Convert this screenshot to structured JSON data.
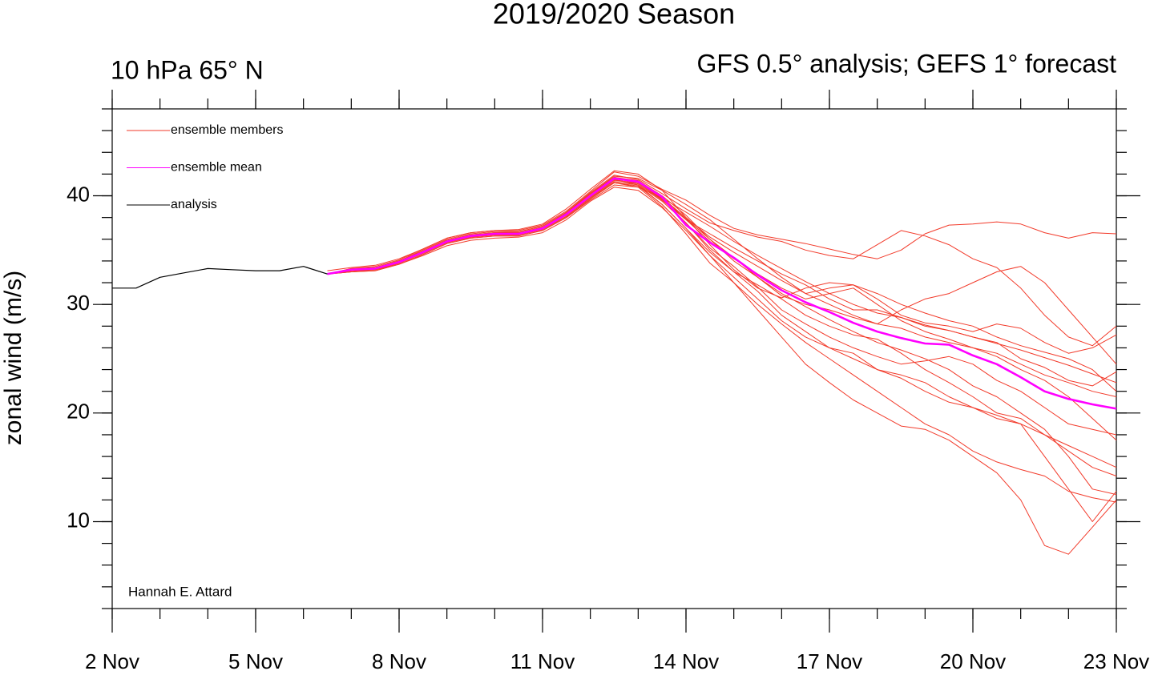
{
  "chart_data": {
    "type": "line",
    "title": "2019/2020 Season",
    "subtitle_left": "10 hPa 65° N",
    "subtitle_right": "GFS 0.5° analysis; GEFS 1° forecast",
    "ylabel": "zonal wind (m/s)",
    "annotation": "Hannah E. Attard",
    "xlim": [
      2,
      23
    ],
    "xticks": [
      {
        "value": 2,
        "label": "2 Nov"
      },
      {
        "value": 5,
        "label": "5 Nov"
      },
      {
        "value": 8,
        "label": "8 Nov"
      },
      {
        "value": 11,
        "label": "11 Nov"
      },
      {
        "value": 14,
        "label": "14 Nov"
      },
      {
        "value": 17,
        "label": "17 Nov"
      },
      {
        "value": 20,
        "label": "20 Nov"
      },
      {
        "value": 23,
        "label": "23 Nov"
      }
    ],
    "ylim": [
      2,
      48
    ],
    "yticks": [
      10,
      20,
      30,
      40
    ],
    "grid": false,
    "legend": "upper left",
    "series": [
      {
        "name": "ensemble members",
        "color": "#f23a2a",
        "x": [
          6.5,
          7,
          7.5,
          8,
          8.5,
          9,
          9.5,
          10,
          10.5,
          11,
          11.5,
          12,
          12.5,
          13,
          13.5,
          14,
          14.5,
          15,
          15.5,
          16,
          16.5,
          17,
          17.5,
          18,
          18.5,
          19,
          19.5,
          20,
          20.5,
          21,
          21.5,
          22,
          22.5,
          23
        ],
        "values": [
          [
            33.1,
            33.4,
            33.6,
            34.2,
            35.1,
            36.1,
            36.6,
            36.8,
            36.8,
            37.3,
            38.6,
            40.4,
            42.2,
            41.8,
            40.6,
            39.6,
            38.2,
            37.0,
            36.4,
            36.0,
            35.6,
            35.1,
            34.6,
            34.2,
            35.0,
            36.5,
            37.3,
            37.4,
            37.6,
            37.4,
            36.6,
            36.1,
            36.6,
            36.5
          ],
          [
            32.8,
            33.0,
            33.1,
            33.7,
            34.6,
            35.6,
            36.1,
            36.3,
            36.3,
            36.8,
            38.0,
            39.6,
            41.0,
            40.8,
            39.8,
            38.5,
            37.2,
            35.8,
            34.5,
            33.3,
            32.1,
            31.0,
            30.0,
            29.2,
            28.8,
            28.1,
            27.6,
            27.0,
            26.4,
            25.8,
            25.1,
            24.4,
            23.6,
            22.8
          ],
          [
            32.8,
            33.3,
            33.5,
            34.1,
            35.1,
            36.1,
            36.6,
            36.8,
            36.9,
            37.4,
            38.8,
            40.6,
            42.3,
            42.0,
            40.5,
            38.0,
            35.5,
            33.2,
            31.5,
            30.6,
            31.5,
            32.0,
            31.8,
            30.5,
            29.0,
            28.3,
            28.0,
            27.5,
            28.2,
            27.8,
            26.5,
            25.5,
            26.0,
            27.2
          ],
          [
            32.8,
            33.1,
            33.2,
            33.7,
            34.5,
            35.4,
            35.9,
            36.1,
            36.2,
            36.6,
            37.8,
            39.5,
            40.8,
            40.5,
            38.9,
            36.8,
            34.5,
            32.0,
            29.5,
            27.0,
            24.5,
            22.8,
            21.2,
            20.0,
            18.8,
            18.5,
            17.5,
            16.0,
            14.5,
            12.0,
            7.8,
            7.0,
            9.5,
            12.0
          ],
          [
            32.8,
            33.2,
            33.4,
            34.0,
            35.0,
            36.0,
            36.5,
            36.7,
            36.7,
            37.2,
            38.5,
            40.3,
            41.9,
            41.5,
            40.2,
            38.8,
            37.5,
            36.8,
            36.2,
            35.8,
            35.0,
            34.5,
            34.2,
            35.5,
            36.8,
            36.3,
            35.5,
            34.2,
            33.4,
            31.5,
            29.0,
            27.0,
            26.2,
            28.0
          ],
          [
            32.8,
            33.0,
            33.2,
            33.8,
            34.7,
            35.7,
            36.2,
            36.4,
            36.4,
            36.9,
            38.1,
            39.8,
            41.3,
            41.0,
            39.5,
            37.5,
            35.0,
            33.0,
            31.2,
            29.0,
            27.5,
            26.0,
            25.0,
            24.0,
            23.5,
            22.8,
            21.5,
            20.5,
            19.5,
            19.0,
            18.0,
            17.0,
            16.0,
            15.0
          ],
          [
            32.8,
            33.1,
            33.3,
            33.9,
            34.9,
            35.9,
            36.4,
            36.6,
            36.6,
            37.1,
            38.4,
            40.1,
            41.7,
            41.4,
            40.0,
            38.2,
            36.0,
            34.0,
            32.5,
            31.0,
            29.8,
            28.6,
            27.5,
            26.5,
            25.8,
            25.0,
            24.0,
            22.5,
            21.5,
            20.0,
            18.5,
            16.0,
            13.0,
            12.5
          ],
          [
            32.8,
            33.2,
            33.3,
            33.9,
            34.8,
            35.7,
            36.2,
            36.4,
            36.5,
            37.0,
            38.2,
            39.9,
            41.4,
            41.2,
            39.8,
            38.0,
            36.2,
            34.8,
            33.5,
            32.2,
            31.0,
            30.0,
            29.0,
            28.2,
            27.8,
            27.0,
            26.5,
            26.0,
            25.5,
            24.5,
            23.5,
            22.8,
            22.0,
            21.5
          ],
          [
            32.8,
            33.3,
            33.4,
            34.0,
            34.9,
            35.9,
            36.4,
            36.6,
            36.6,
            37.1,
            38.4,
            40.2,
            41.8,
            41.6,
            40.5,
            39.2,
            37.8,
            36.0,
            34.2,
            32.5,
            31.0,
            31.5,
            31.8,
            31.0,
            30.0,
            29.2,
            28.5,
            28.0,
            27.0,
            26.2,
            25.6,
            25.0,
            24.0,
            22.0
          ],
          [
            32.8,
            33.0,
            33.1,
            33.7,
            34.6,
            35.6,
            36.1,
            36.3,
            36.3,
            36.8,
            38.0,
            39.7,
            41.2,
            40.9,
            39.2,
            37.0,
            34.8,
            33.0,
            31.8,
            30.5,
            29.0,
            28.0,
            27.2,
            26.8,
            25.5,
            24.0,
            22.8,
            21.5,
            20.0,
            19.5,
            18.0,
            16.5,
            15.0,
            14.2
          ],
          [
            32.8,
            33.2,
            33.4,
            34.0,
            34.9,
            35.9,
            36.4,
            36.6,
            36.7,
            37.2,
            38.5,
            40.2,
            41.7,
            41.3,
            39.6,
            37.8,
            36.5,
            35.2,
            34.0,
            32.8,
            31.8,
            30.5,
            29.5,
            29.5,
            28.8,
            28.0,
            27.6,
            27.0,
            26.5,
            25.0,
            24.2,
            23.0,
            22.5,
            23.8
          ],
          [
            32.8,
            33.1,
            33.2,
            33.8,
            34.7,
            35.7,
            36.2,
            36.4,
            36.4,
            36.9,
            38.1,
            39.8,
            41.2,
            40.8,
            39.0,
            36.5,
            33.8,
            32.0,
            30.0,
            28.2,
            26.5,
            25.0,
            23.5,
            22.0,
            20.5,
            19.0,
            18.0,
            16.5,
            15.5,
            14.8,
            14.2,
            12.8,
            12.2,
            11.8
          ],
          [
            32.8,
            33.2,
            33.3,
            33.9,
            34.8,
            35.8,
            36.3,
            36.5,
            36.5,
            37.0,
            38.3,
            40.0,
            41.5,
            41.1,
            39.6,
            37.9,
            36.0,
            34.3,
            32.5,
            30.8,
            30.0,
            29.5,
            28.8,
            28.2,
            29.5,
            30.5,
            31.0,
            32.0,
            33.0,
            33.5,
            32.0,
            29.5,
            27.0,
            24.5
          ],
          [
            32.8,
            33.1,
            33.3,
            33.9,
            34.8,
            35.8,
            36.3,
            36.5,
            36.5,
            37.0,
            38.3,
            40.0,
            41.6,
            41.2,
            39.7,
            37.5,
            35.2,
            33.5,
            31.6,
            29.5,
            28.2,
            27.0,
            26.0,
            25.2,
            24.5,
            24.8,
            25.2,
            24.5,
            23.0,
            22.0,
            20.5,
            19.0,
            18.5,
            18.0
          ],
          [
            32.8,
            33.2,
            33.3,
            33.9,
            34.8,
            35.8,
            36.3,
            36.5,
            36.5,
            37.0,
            38.3,
            40.0,
            41.6,
            41.3,
            39.9,
            37.8,
            35.8,
            34.2,
            32.8,
            31.5,
            30.5,
            31.0,
            31.5,
            30.0,
            28.5,
            27.5,
            26.8,
            26.0,
            25.2,
            24.0,
            23.0,
            21.5,
            19.5,
            17.5
          ],
          [
            32.8,
            33.1,
            33.3,
            33.9,
            34.8,
            35.8,
            36.3,
            36.5,
            36.5,
            37.0,
            38.3,
            40.0,
            41.5,
            41.0,
            39.2,
            37.0,
            34.5,
            32.5,
            30.5,
            28.5,
            27.0,
            26.0,
            25.5,
            24.0,
            23.2,
            22.0,
            21.0,
            20.5,
            19.8,
            19.0,
            16.0,
            13.0,
            10.0,
            12.8
          ]
        ]
      },
      {
        "name": "ensemble mean",
        "color": "#ff00ff",
        "x": [
          6.5,
          7,
          7.5,
          8,
          8.5,
          9,
          9.5,
          10,
          10.5,
          11,
          11.5,
          12,
          12.5,
          13,
          13.5,
          14,
          14.5,
          15,
          15.5,
          16,
          16.5,
          17,
          17.5,
          18,
          18.5,
          19,
          19.5,
          20,
          20.5,
          21,
          21.5,
          22,
          22.5,
          23
        ],
        "values": [
          32.8,
          33.2,
          33.3,
          33.9,
          34.8,
          35.8,
          36.3,
          36.5,
          36.5,
          37.0,
          38.3,
          40.0,
          41.6,
          41.3,
          39.9,
          37.3,
          35.7,
          34.3,
          32.7,
          31.3,
          30.2,
          29.3,
          28.3,
          27.5,
          26.9,
          26.4,
          26.3,
          25.3,
          24.5,
          23.3,
          22.0,
          21.3,
          20.8,
          20.4
        ]
      },
      {
        "name": "analysis",
        "color": "#000000",
        "x": [
          2,
          2.5,
          3,
          3.5,
          4,
          4.5,
          5,
          5.5,
          6,
          6.5
        ],
        "values": [
          31.5,
          31.5,
          32.5,
          32.9,
          33.3,
          33.2,
          33.1,
          33.1,
          33.5,
          32.8
        ]
      }
    ]
  }
}
